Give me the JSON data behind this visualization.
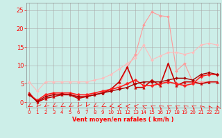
{
  "background_color": "#cceee8",
  "grid_color": "#aaaaaa",
  "xlabel": "Vent moyen/en rafales ( km/h )",
  "xlabel_color": "#ff0000",
  "ylabel_ticks": [
    0,
    5,
    10,
    15,
    20,
    25
  ],
  "xticks": [
    0,
    1,
    2,
    3,
    4,
    5,
    6,
    7,
    8,
    9,
    10,
    11,
    12,
    13,
    14,
    15,
    16,
    17,
    18,
    19,
    20,
    21,
    22,
    23
  ],
  "xlim": [
    -0.3,
    23.3
  ],
  "ylim": [
    -1.5,
    27
  ],
  "tick_color": "#ff0000",
  "series": [
    {
      "x": [
        0,
        1,
        2,
        3,
        4,
        5,
        6,
        7,
        8,
        9,
        10,
        11,
        12,
        13,
        14,
        15,
        16,
        17,
        18,
        19,
        20,
        21,
        22,
        23
      ],
      "y": [
        2.5,
        0.3,
        2.0,
        2.2,
        2.3,
        2.5,
        1.5,
        1.8,
        2.0,
        2.5,
        3.0,
        4.5,
        9.5,
        13.0,
        21.0,
        24.5,
        23.5,
        23.2,
        8.5,
        10.5,
        5.5,
        5.5,
        5.5,
        5.5
      ],
      "color": "#ff9999",
      "linewidth": 0.8,
      "marker": "D",
      "markersize": 2.0
    },
    {
      "x": [
        0,
        1,
        2,
        3,
        4,
        5,
        6,
        7,
        8,
        9,
        10,
        11,
        12,
        13,
        14,
        15,
        16,
        17,
        18,
        19,
        20,
        21,
        22,
        23
      ],
      "y": [
        5.5,
        3.0,
        5.5,
        5.5,
        5.5,
        5.5,
        5.5,
        5.5,
        6.0,
        6.5,
        7.5,
        9.0,
        10.5,
        12.0,
        15.5,
        11.5,
        12.5,
        13.5,
        13.5,
        13.0,
        13.5,
        15.5,
        16.0,
        15.5
      ],
      "color": "#ffbbbb",
      "linewidth": 0.8,
      "marker": "D",
      "markersize": 2.0
    },
    {
      "x": [
        0,
        1,
        2,
        3,
        4,
        5,
        6,
        7,
        8,
        9,
        10,
        11,
        12,
        13,
        14,
        15,
        16,
        17,
        18,
        19,
        20,
        21,
        22,
        23
      ],
      "y": [
        2.5,
        0.0,
        1.0,
        1.5,
        2.0,
        2.0,
        1.0,
        1.5,
        2.0,
        2.5,
        3.5,
        5.5,
        9.5,
        4.0,
        4.0,
        6.0,
        4.5,
        10.5,
        4.5,
        5.5,
        5.5,
        5.0,
        5.5,
        5.5
      ],
      "color": "#cc0000",
      "linewidth": 1.2,
      "marker": "^",
      "markersize": 2.5
    },
    {
      "x": [
        0,
        1,
        2,
        3,
        4,
        5,
        6,
        7,
        8,
        9,
        10,
        11,
        12,
        13,
        14,
        15,
        16,
        17,
        18,
        19,
        20,
        21,
        22,
        23
      ],
      "y": [
        2.0,
        0.5,
        2.0,
        2.5,
        2.5,
        2.5,
        2.0,
        2.0,
        2.5,
        3.0,
        3.5,
        4.0,
        5.0,
        6.0,
        4.5,
        4.5,
        5.0,
        5.5,
        5.0,
        4.5,
        5.0,
        7.0,
        7.5,
        7.5
      ],
      "color": "#ff2222",
      "linewidth": 1.2,
      "marker": "D",
      "markersize": 2.5
    },
    {
      "x": [
        0,
        1,
        2,
        3,
        4,
        5,
        6,
        7,
        8,
        9,
        10,
        11,
        12,
        13,
        14,
        15,
        16,
        17,
        18,
        19,
        20,
        21,
        22,
        23
      ],
      "y": [
        2.0,
        0.2,
        1.5,
        2.0,
        2.2,
        2.0,
        1.5,
        1.5,
        2.0,
        2.5,
        3.0,
        3.5,
        4.0,
        5.0,
        5.5,
        5.5,
        5.5,
        6.0,
        6.5,
        6.5,
        6.0,
        7.5,
        8.0,
        7.5
      ],
      "color": "#aa0000",
      "linewidth": 1.0,
      "marker": "D",
      "markersize": 2.0
    }
  ],
  "arrow_angles_deg": [
    220,
    200,
    210,
    215,
    220,
    215,
    200,
    195,
    215,
    225,
    245,
    255,
    275,
    285,
    305,
    320,
    325,
    315,
    320,
    325,
    320,
    335,
    345,
    350
  ]
}
